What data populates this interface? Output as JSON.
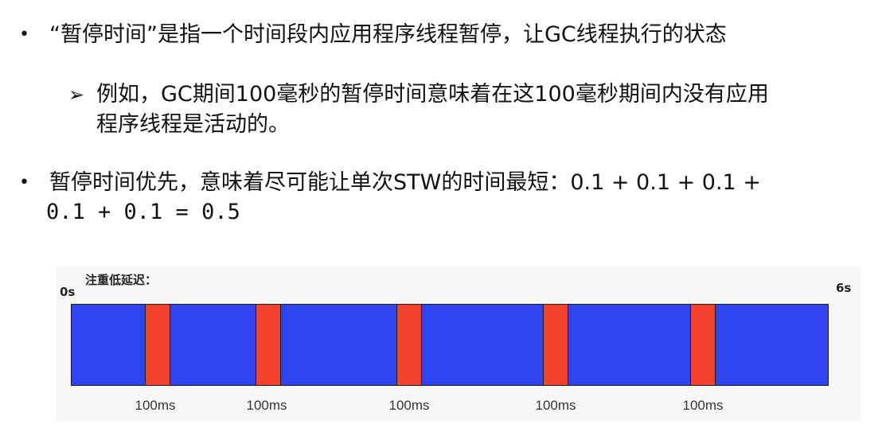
{
  "bullets": [
    {
      "marker": "•",
      "lines": [
        "“暂停时间”是指一个时间段内应用程序线程暂停，让GC线程执行的状态"
      ]
    },
    {
      "marker": "•",
      "lines": [
        "暂停时间优先，意味着尽可能让单次STW的时间最短：0.1 + 0.1 + 0.1 +",
        "0.1 + 0.1 = 0.5"
      ]
    }
  ],
  "sub_bullet": {
    "marker": "➢",
    "lines": [
      "例如，GC期间100毫秒的暂停时间意味着在这100毫秒期间内没有应用",
      "程序线程是活动的。"
    ]
  },
  "diagram": {
    "title": "注重低延迟：",
    "start_label": "0s",
    "end_label": "6s",
    "pause_label": "100ms",
    "colors": {
      "running": "#2f45f0",
      "pause": "#f4432d"
    },
    "pauses": [
      {
        "label": "100ms"
      },
      {
        "label": "100ms"
      },
      {
        "label": "100ms"
      },
      {
        "label": "100ms"
      },
      {
        "label": "100ms"
      }
    ]
  }
}
